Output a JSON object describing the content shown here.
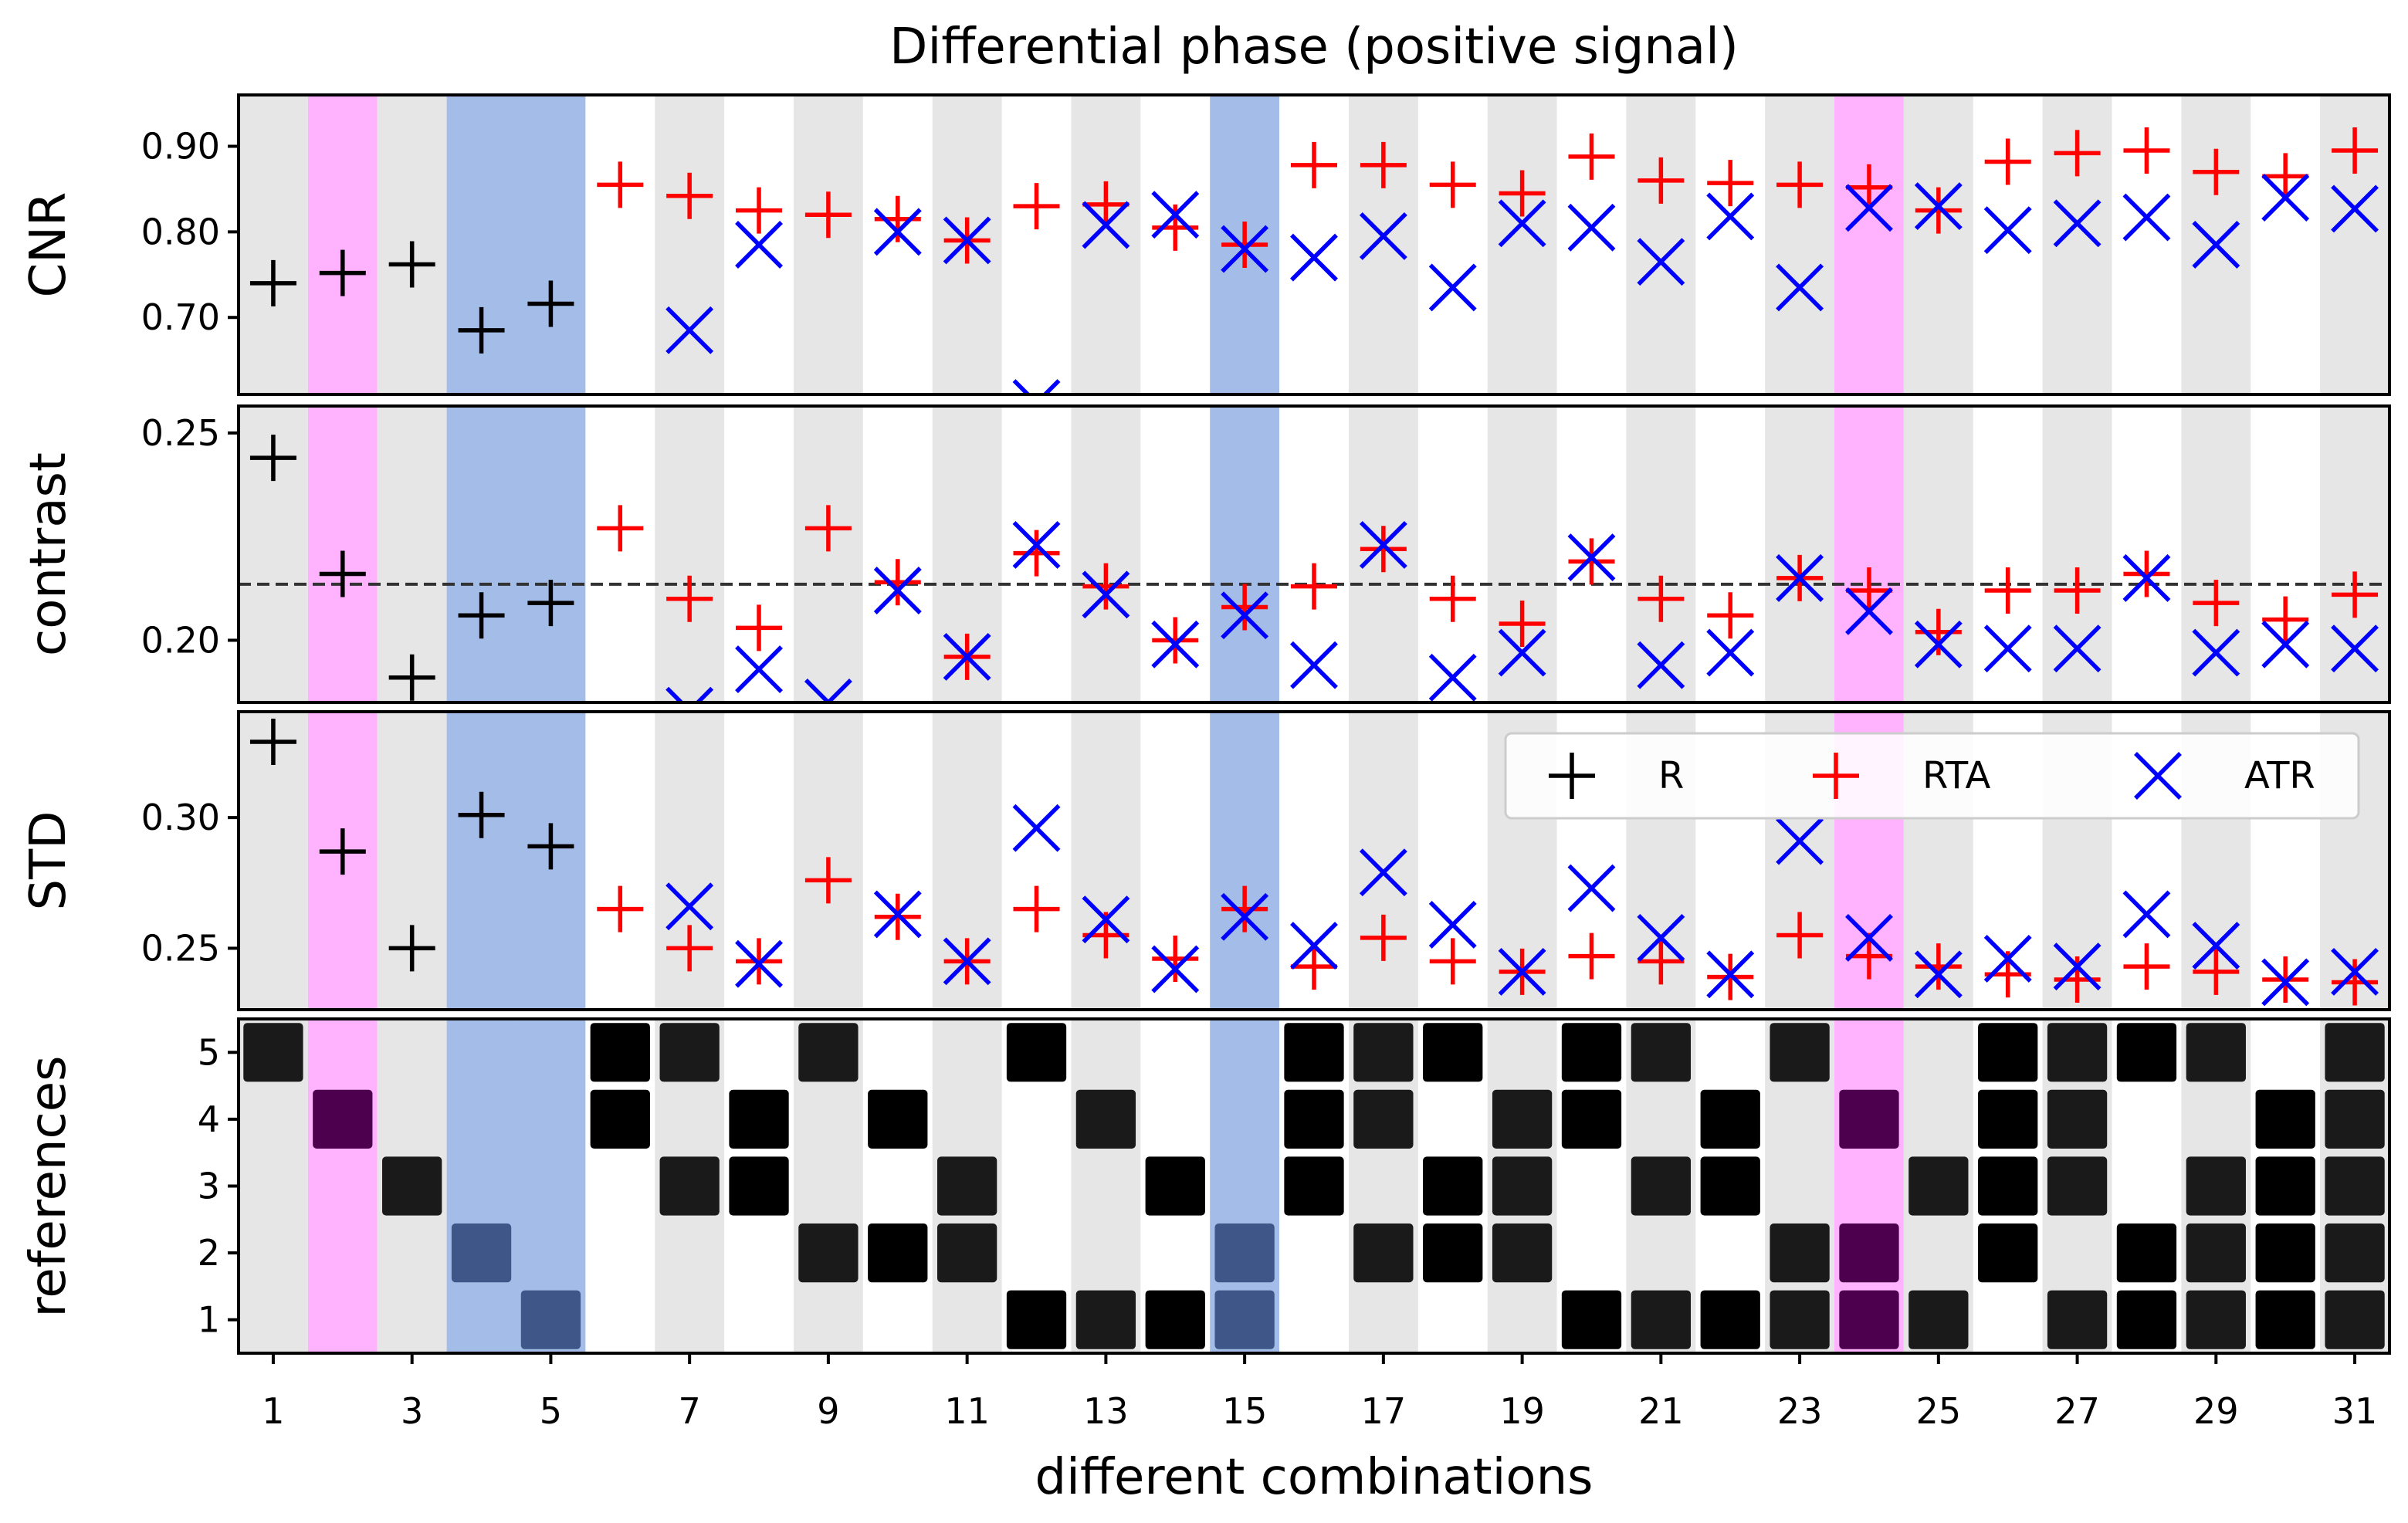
{
  "chart_data": {
    "type": "scatter",
    "title": "Differential phase  (positive signal)",
    "xlabel": "different combinations",
    "x": [
      1,
      2,
      3,
      4,
      5,
      6,
      7,
      8,
      9,
      10,
      11,
      12,
      13,
      14,
      15,
      16,
      17,
      18,
      19,
      20,
      21,
      22,
      23,
      24,
      25,
      26,
      27,
      28,
      29,
      30,
      31
    ],
    "x_tick_labels": [
      "1",
      "3",
      "5",
      "7",
      "9",
      "11",
      "13",
      "15",
      "17",
      "19",
      "21",
      "23",
      "25",
      "27",
      "29",
      "31"
    ],
    "highlights": {
      "magenta": [
        2,
        24
      ],
      "blue": [
        4,
        5,
        15
      ],
      "magenta_color": "#ffb3ff",
      "blue_color": "#a3bde8",
      "stripe_color": "#e6e6e6"
    },
    "legend": {
      "entries": [
        {
          "label": "R",
          "color": "#000000",
          "marker": "plus"
        },
        {
          "label": "RTA",
          "color": "#ff0000",
          "marker": "plus"
        },
        {
          "label": "ATR",
          "color": "#0000ff",
          "marker": "cross"
        }
      ]
    },
    "panels": [
      {
        "ylabel": "CNR",
        "ylim": [
          0.61,
          0.96
        ],
        "yticks": [
          0.7,
          0.8,
          0.9
        ],
        "ytick_labels": [
          "0.70",
          "0.80",
          "0.90"
        ],
        "series": [
          {
            "name": "R",
            "color": "#000000",
            "marker": "plus",
            "x": [
              1,
              2,
              3,
              4,
              5
            ],
            "values": [
              0.74,
              0.752,
              0.762,
              0.685,
              0.716
            ]
          },
          {
            "name": "RTA",
            "color": "#ff0000",
            "marker": "plus",
            "x": [
              6,
              7,
              8,
              9,
              10,
              11,
              12,
              13,
              14,
              15,
              16,
              17,
              18,
              19,
              20,
              21,
              22,
              23,
              24,
              25,
              26,
              27,
              28,
              29,
              30,
              31
            ],
            "values": [
              0.855,
              0.842,
              0.825,
              0.82,
              0.815,
              0.79,
              0.83,
              0.832,
              0.805,
              0.785,
              0.878,
              0.878,
              0.855,
              0.845,
              0.888,
              0.86,
              0.857,
              0.855,
              0.852,
              0.825,
              0.882,
              0.892,
              0.895,
              0.87,
              0.865,
              0.895
            ]
          },
          {
            "name": "ATR",
            "color": "#0000ff",
            "marker": "cross",
            "x": [
              7,
              8,
              10,
              11,
              12,
              13,
              14,
              15,
              16,
              17,
              18,
              19,
              20,
              21,
              22,
              23,
              24,
              25,
              26,
              27,
              28,
              29,
              30,
              31
            ],
            "values": [
              0.685,
              0.785,
              0.8,
              0.79,
              0.6,
              0.808,
              0.82,
              0.78,
              0.77,
              0.795,
              0.735,
              0.81,
              0.805,
              0.765,
              0.818,
              0.735,
              0.828,
              0.83,
              0.802,
              0.81,
              0.817,
              0.785,
              0.84,
              0.827
            ]
          }
        ]
      },
      {
        "ylabel": "contrast",
        "ylim": [
          0.185,
          0.2565
        ],
        "yticks": [
          0.2,
          0.25
        ],
        "ytick_labels": [
          "0.20",
          "0.25"
        ],
        "hline": 0.2135,
        "series": [
          {
            "name": "R",
            "color": "#000000",
            "marker": "plus",
            "x": [
              1,
              2,
              3,
              4,
              5
            ],
            "values": [
              0.244,
              0.216,
              0.191,
              0.206,
              0.209
            ]
          },
          {
            "name": "RTA",
            "color": "#ff0000",
            "marker": "plus",
            "x": [
              6,
              7,
              8,
              9,
              10,
              11,
              12,
              13,
              14,
              15,
              16,
              17,
              18,
              19,
              20,
              21,
              22,
              23,
              24,
              25,
              26,
              27,
              28,
              29,
              30,
              31
            ],
            "values": [
              0.227,
              0.21,
              0.203,
              0.227,
              0.214,
              0.196,
              0.221,
              0.213,
              0.2,
              0.208,
              0.213,
              0.222,
              0.21,
              0.204,
              0.219,
              0.21,
              0.206,
              0.215,
              0.212,
              0.202,
              0.212,
              0.212,
              0.216,
              0.209,
              0.205,
              0.211
            ]
          },
          {
            "name": "ATR",
            "color": "#0000ff",
            "marker": "cross",
            "x": [
              7,
              8,
              9,
              10,
              11,
              12,
              13,
              14,
              15,
              16,
              17,
              18,
              19,
              20,
              21,
              22,
              23,
              24,
              25,
              26,
              27,
              28,
              29,
              30,
              31
            ],
            "values": [
              0.183,
              0.193,
              0.185,
              0.212,
              0.196,
              0.223,
              0.211,
              0.199,
              0.206,
              0.194,
              0.223,
              0.191,
              0.197,
              0.22,
              0.194,
              0.197,
              0.215,
              0.207,
              0.199,
              0.198,
              0.198,
              0.215,
              0.197,
              0.199,
              0.198
            ]
          }
        ]
      },
      {
        "ylabel": "STD",
        "ylim": [
          0.2265,
          0.3405
        ],
        "yticks": [
          0.25,
          0.3
        ],
        "ytick_labels": [
          "0.25",
          "0.30"
        ],
        "series": [
          {
            "name": "R",
            "color": "#000000",
            "marker": "plus",
            "x": [
              1,
              2,
              3,
              4,
              5
            ],
            "values": [
              0.329,
              0.287,
              0.25,
              0.301,
              0.289
            ]
          },
          {
            "name": "RTA",
            "color": "#ff0000",
            "marker": "plus",
            "x": [
              6,
              7,
              8,
              9,
              10,
              11,
              12,
              13,
              14,
              15,
              16,
              17,
              18,
              19,
              20,
              21,
              22,
              23,
              24,
              25,
              26,
              27,
              28,
              29,
              30,
              31
            ],
            "values": [
              0.265,
              0.25,
              0.245,
              0.276,
              0.262,
              0.245,
              0.265,
              0.255,
              0.246,
              0.265,
              0.243,
              0.254,
              0.245,
              0.241,
              0.247,
              0.245,
              0.239,
              0.255,
              0.247,
              0.243,
              0.24,
              0.238,
              0.243,
              0.241,
              0.238,
              0.237
            ]
          },
          {
            "name": "ATR",
            "color": "#0000ff",
            "marker": "cross",
            "x": [
              7,
              8,
              10,
              11,
              12,
              13,
              14,
              15,
              16,
              17,
              18,
              19,
              20,
              21,
              22,
              23,
              24,
              25,
              26,
              27,
              28,
              29,
              30,
              31
            ],
            "values": [
              0.266,
              0.244,
              0.263,
              0.245,
              0.296,
              0.261,
              0.242,
              0.262,
              0.251,
              0.279,
              0.259,
              0.241,
              0.273,
              0.254,
              0.24,
              0.291,
              0.254,
              0.24,
              0.246,
              0.243,
              0.263,
              0.251,
              0.237,
              0.241
            ]
          }
        ]
      }
    ],
    "references": {
      "ylabel": "references",
      "levels": [
        1,
        2,
        3,
        4,
        5
      ],
      "cells": [
        {
          "x": 1,
          "y": 5,
          "shade": "dark"
        },
        {
          "x": 2,
          "y": 4,
          "shade": "magenta"
        },
        {
          "x": 3,
          "y": 3,
          "shade": "dark"
        },
        {
          "x": 4,
          "y": 2,
          "shade": "blue"
        },
        {
          "x": 5,
          "y": 1,
          "shade": "blue"
        },
        {
          "x": 6,
          "y": 5,
          "shade": "black"
        },
        {
          "x": 6,
          "y": 4,
          "shade": "black"
        },
        {
          "x": 7,
          "y": 5,
          "shade": "dark"
        },
        {
          "x": 7,
          "y": 3,
          "shade": "dark"
        },
        {
          "x": 8,
          "y": 4,
          "shade": "black"
        },
        {
          "x": 8,
          "y": 3,
          "shade": "black"
        },
        {
          "x": 9,
          "y": 5,
          "shade": "dark"
        },
        {
          "x": 9,
          "y": 2,
          "shade": "dark"
        },
        {
          "x": 10,
          "y": 4,
          "shade": "black"
        },
        {
          "x": 10,
          "y": 2,
          "shade": "black"
        },
        {
          "x": 11,
          "y": 3,
          "shade": "dark"
        },
        {
          "x": 11,
          "y": 2,
          "shade": "dark"
        },
        {
          "x": 12,
          "y": 5,
          "shade": "black"
        },
        {
          "x": 12,
          "y": 1,
          "shade": "black"
        },
        {
          "x": 13,
          "y": 4,
          "shade": "dark"
        },
        {
          "x": 13,
          "y": 1,
          "shade": "dark"
        },
        {
          "x": 14,
          "y": 3,
          "shade": "black"
        },
        {
          "x": 14,
          "y": 1,
          "shade": "black"
        },
        {
          "x": 15,
          "y": 2,
          "shade": "blue"
        },
        {
          "x": 15,
          "y": 1,
          "shade": "blue"
        },
        {
          "x": 16,
          "y": 5,
          "shade": "black"
        },
        {
          "x": 16,
          "y": 4,
          "shade": "black"
        },
        {
          "x": 16,
          "y": 3,
          "shade": "black"
        },
        {
          "x": 17,
          "y": 5,
          "shade": "dark"
        },
        {
          "x": 17,
          "y": 4,
          "shade": "dark"
        },
        {
          "x": 17,
          "y": 2,
          "shade": "dark"
        },
        {
          "x": 18,
          "y": 5,
          "shade": "black"
        },
        {
          "x": 18,
          "y": 3,
          "shade": "black"
        },
        {
          "x": 18,
          "y": 2,
          "shade": "black"
        },
        {
          "x": 19,
          "y": 4,
          "shade": "dark"
        },
        {
          "x": 19,
          "y": 3,
          "shade": "dark"
        },
        {
          "x": 19,
          "y": 2,
          "shade": "dark"
        },
        {
          "x": 20,
          "y": 5,
          "shade": "black"
        },
        {
          "x": 20,
          "y": 4,
          "shade": "black"
        },
        {
          "x": 20,
          "y": 1,
          "shade": "black"
        },
        {
          "x": 21,
          "y": 5,
          "shade": "dark"
        },
        {
          "x": 21,
          "y": 3,
          "shade": "dark"
        },
        {
          "x": 21,
          "y": 1,
          "shade": "dark"
        },
        {
          "x": 22,
          "y": 4,
          "shade": "black"
        },
        {
          "x": 22,
          "y": 3,
          "shade": "black"
        },
        {
          "x": 22,
          "y": 1,
          "shade": "black"
        },
        {
          "x": 23,
          "y": 5,
          "shade": "dark"
        },
        {
          "x": 23,
          "y": 2,
          "shade": "dark"
        },
        {
          "x": 23,
          "y": 1,
          "shade": "dark"
        },
        {
          "x": 24,
          "y": 4,
          "shade": "magenta"
        },
        {
          "x": 24,
          "y": 2,
          "shade": "magenta"
        },
        {
          "x": 24,
          "y": 1,
          "shade": "magenta"
        },
        {
          "x": 25,
          "y": 3,
          "shade": "dark"
        },
        {
          "x": 25,
          "y": 1,
          "shade": "dark"
        },
        {
          "x": 26,
          "y": 5,
          "shade": "black"
        },
        {
          "x": 26,
          "y": 4,
          "shade": "black"
        },
        {
          "x": 26,
          "y": 3,
          "shade": "black"
        },
        {
          "x": 26,
          "y": 2,
          "shade": "black"
        },
        {
          "x": 27,
          "y": 5,
          "shade": "dark"
        },
        {
          "x": 27,
          "y": 4,
          "shade": "dark"
        },
        {
          "x": 27,
          "y": 3,
          "shade": "dark"
        },
        {
          "x": 27,
          "y": 1,
          "shade": "dark"
        },
        {
          "x": 28,
          "y": 5,
          "shade": "black"
        },
        {
          "x": 28,
          "y": 2,
          "shade": "black"
        },
        {
          "x": 28,
          "y": 1,
          "shade": "black"
        },
        {
          "x": 29,
          "y": 5,
          "shade": "dark"
        },
        {
          "x": 29,
          "y": 3,
          "shade": "dark"
        },
        {
          "x": 29,
          "y": 2,
          "shade": "dark"
        },
        {
          "x": 29,
          "y": 1,
          "shade": "dark"
        },
        {
          "x": 30,
          "y": 4,
          "shade": "black"
        },
        {
          "x": 30,
          "y": 3,
          "shade": "black"
        },
        {
          "x": 30,
          "y": 2,
          "shade": "black"
        },
        {
          "x": 30,
          "y": 1,
          "shade": "black"
        },
        {
          "x": 31,
          "y": 5,
          "shade": "dark"
        },
        {
          "x": 31,
          "y": 4,
          "shade": "dark"
        },
        {
          "x": 31,
          "y": 3,
          "shade": "dark"
        },
        {
          "x": 31,
          "y": 2,
          "shade": "dark"
        },
        {
          "x": 31,
          "y": 1,
          "shade": "dark"
        }
      ],
      "shade_colors": {
        "black": "#000000",
        "dark": "#1a1a1a",
        "magenta": "#4d004d",
        "blue": "#3e5788"
      }
    }
  }
}
